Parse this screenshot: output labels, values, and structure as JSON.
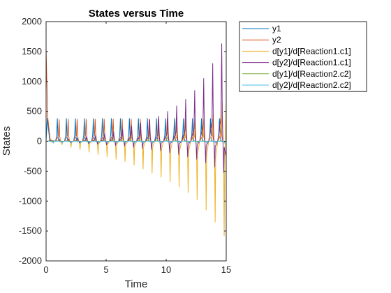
{
  "chart_data": {
    "type": "line",
    "title": "States versus Time",
    "xlabel": "Time",
    "ylabel": "States",
    "xlim": [
      0,
      15
    ],
    "ylim": [
      -2000,
      2000
    ],
    "xticks": [
      0,
      5,
      10,
      15
    ],
    "yticks": [
      -2000,
      -1500,
      -1000,
      -500,
      0,
      500,
      1000,
      1500,
      2000
    ],
    "legend_position": "outside-top-right",
    "grid": false,
    "series": [
      {
        "name": "y1",
        "color": "#0072BD",
        "approx_peaks": [
          380,
          380,
          380,
          380,
          380,
          380,
          380,
          380,
          380,
          380,
          380,
          380,
          380,
          380,
          380,
          380,
          380,
          380,
          380,
          380
        ],
        "approx_troughs": [
          5,
          5,
          5,
          5,
          5,
          5,
          5,
          5,
          5,
          5,
          5,
          5,
          5,
          5,
          5,
          5,
          5,
          5,
          5,
          5
        ]
      },
      {
        "name": "y2",
        "color": "#D95319",
        "approx_peaks": [
          1550,
          360,
          370,
          370,
          370,
          370,
          370,
          370,
          370,
          370,
          370,
          370,
          370,
          370,
          370,
          370,
          370,
          370,
          370,
          370
        ]
      },
      {
        "name": "d[y1]/d[Reaction1.c1]",
        "color": "#EDB120",
        "approx_peaks": [
          30,
          40,
          45,
          55,
          60,
          70,
          80,
          90,
          100,
          115,
          130,
          150,
          170,
          200,
          230,
          270,
          320,
          380,
          460,
          650
        ],
        "approx_troughs": [
          -20,
          -60,
          -100,
          -140,
          -180,
          -220,
          -260,
          -300,
          -340,
          -400,
          -460,
          -530,
          -600,
          -680,
          -760,
          -860,
          -980,
          -1150,
          -1350,
          -1580
        ]
      },
      {
        "name": "d[y2]/d[Reaction1.c1]",
        "color": "#7E2F8E",
        "approx_peaks": [
          20,
          30,
          40,
          60,
          80,
          100,
          130,
          160,
          200,
          250,
          300,
          360,
          420,
          500,
          590,
          700,
          850,
          1050,
          1300,
          1630
        ],
        "approx_troughs": [
          -10,
          -15,
          -20,
          -30,
          -40,
          -50,
          -60,
          -70,
          -80,
          -100,
          -120,
          -140,
          -160,
          -190,
          -220,
          -260,
          -300,
          -360,
          -430,
          -520
        ]
      },
      {
        "name": "d[y1]/d[Reaction2.c2]",
        "color": "#77AC30",
        "approx_peaks": [
          10,
          10,
          10,
          10,
          10,
          10,
          10,
          10,
          10,
          10,
          10,
          10,
          10,
          10,
          10,
          10,
          10,
          10,
          10,
          10
        ],
        "approx_troughs": [
          -10,
          -10,
          -10,
          -10,
          -10,
          -10,
          -10,
          -10,
          -10,
          -10,
          -10,
          -10,
          -10,
          -10,
          -10,
          -10,
          -10,
          -10,
          -10,
          -10
        ]
      },
      {
        "name": "d[y2]/d[Reaction2.c2]",
        "color": "#4DBEEE",
        "approx_peaks": [
          5,
          5,
          5,
          5,
          5,
          5,
          5,
          5,
          5,
          5,
          5,
          5,
          5,
          5,
          5,
          5,
          5,
          5,
          5,
          5
        ],
        "approx_troughs": [
          -30,
          -30,
          -30,
          -30,
          -30,
          -30,
          -30,
          -30,
          -30,
          -30,
          -30,
          -30,
          -30,
          -30,
          -30,
          -30,
          -30,
          -30,
          -30,
          -30
        ]
      }
    ]
  }
}
